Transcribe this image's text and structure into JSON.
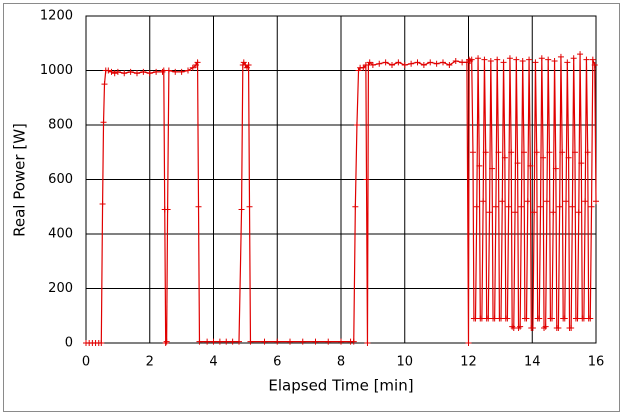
{
  "chart_data": {
    "type": "line",
    "xlabel": "Elapsed Time [min]",
    "ylabel": "Real Power [W]",
    "color": "#e00000",
    "grid": true,
    "xlim": [
      0,
      16
    ],
    "xticks": [
      0,
      2,
      4,
      6,
      8,
      10,
      12,
      14,
      16
    ],
    "ylim": [
      0,
      1200
    ],
    "yticks": [
      0,
      200,
      400,
      600,
      800,
      1000,
      1200
    ],
    "x": [
      0,
      0.1,
      0.2,
      0.3,
      0.4,
      0.48,
      0.52,
      0.55,
      0.58,
      0.62,
      0.7,
      0.8,
      0.9,
      1.0,
      1.2,
      1.4,
      1.6,
      1.8,
      2.0,
      2.2,
      2.4,
      2.44,
      2.47,
      2.5,
      2.53,
      2.56,
      2.6,
      2.8,
      3.0,
      3.2,
      3.35,
      3.45,
      3.5,
      3.53,
      3.56,
      3.8,
      4.0,
      4.2,
      4.4,
      4.6,
      4.8,
      4.88,
      4.92,
      4.95,
      5.0,
      5.05,
      5.1,
      5.13,
      5.16,
      5.6,
      6.0,
      6.4,
      6.8,
      7.2,
      7.6,
      8.0,
      8.3,
      8.4,
      8.45,
      8.5,
      8.55,
      8.6,
      8.7,
      8.78,
      8.8,
      8.83,
      8.86,
      8.9,
      9.0,
      9.2,
      9.4,
      9.6,
      9.8,
      10.0,
      10.2,
      10.4,
      10.6,
      10.8,
      11.0,
      11.2,
      11.4,
      11.6,
      11.8,
      11.95,
      12.0,
      12.02,
      12.05,
      12.1,
      12.14,
      12.17,
      12.22,
      12.26,
      12.3,
      12.34,
      12.37,
      12.42,
      12.46,
      12.5,
      12.54,
      12.57,
      12.62,
      12.66,
      12.7,
      12.74,
      12.77,
      12.82,
      12.86,
      12.9,
      12.94,
      12.97,
      13.02,
      13.06,
      13.1,
      13.14,
      13.17,
      13.22,
      13.26,
      13.3,
      13.34,
      13.37,
      13.42,
      13.46,
      13.5,
      13.54,
      13.57,
      13.62,
      13.66,
      13.7,
      13.74,
      13.77,
      13.82,
      13.86,
      13.9,
      13.94,
      13.97,
      14.02,
      14.06,
      14.1,
      14.14,
      14.17,
      14.22,
      14.26,
      14.3,
      14.34,
      14.37,
      14.42,
      14.46,
      14.5,
      14.54,
      14.57,
      14.62,
      14.66,
      14.7,
      14.74,
      14.77,
      14.82,
      14.86,
      14.9,
      14.94,
      14.97,
      15.02,
      15.06,
      15.1,
      15.14,
      15.17,
      15.22,
      15.26,
      15.3,
      15.34,
      15.37,
      15.42,
      15.46,
      15.5,
      15.54,
      15.57,
      15.62,
      15.66,
      15.7,
      15.74,
      15.77,
      15.82,
      15.86,
      15.9,
      15.96,
      16.0
    ],
    "values": [
      0,
      0,
      0,
      0,
      0,
      0,
      510,
      810,
      950,
      1000,
      1000,
      995,
      990,
      995,
      990,
      995,
      990,
      995,
      990,
      995,
      995,
      1000,
      490,
      0,
      5,
      490,
      1000,
      995,
      995,
      1000,
      1010,
      1020,
      1030,
      500,
      5,
      5,
      5,
      5,
      5,
      5,
      5,
      490,
      1020,
      1030,
      1020,
      1010,
      1020,
      500,
      5,
      5,
      5,
      5,
      5,
      5,
      5,
      5,
      5,
      5,
      500,
      800,
      1000,
      1010,
      1010,
      1020,
      600,
      0,
      1020,
      1030,
      1020,
      1025,
      1030,
      1020,
      1030,
      1020,
      1025,
      1030,
      1020,
      1030,
      1025,
      1030,
      1020,
      1035,
      1030,
      1030,
      0,
      1040,
      1035,
      1040,
      700,
      90,
      90,
      500,
      1045,
      650,
      90,
      90,
      520,
      1040,
      700,
      90,
      90,
      480,
      1035,
      640,
      90,
      90,
      500,
      1040,
      700,
      90,
      90,
      520,
      1030,
      680,
      90,
      90,
      500,
      1045,
      700,
      60,
      55,
      480,
      1040,
      660,
      55,
      60,
      500,
      1035,
      700,
      90,
      90,
      520,
      1040,
      650,
      55,
      55,
      480,
      1030,
      700,
      90,
      90,
      500,
      1045,
      680,
      55,
      60,
      520,
      1040,
      700,
      90,
      90,
      480,
      1035,
      640,
      55,
      55,
      500,
      1050,
      700,
      90,
      90,
      520,
      1030,
      680,
      55,
      55,
      500,
      1045,
      700,
      90,
      90,
      480,
      1060,
      660,
      90,
      90,
      520,
      1040,
      700,
      90,
      90,
      500,
      1040,
      1020,
      520
    ]
  }
}
